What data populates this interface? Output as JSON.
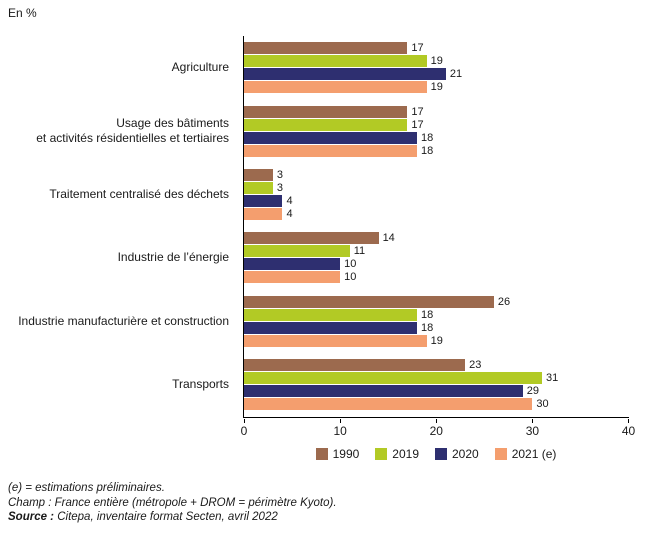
{
  "title": "En %",
  "chart_data": {
    "type": "bar",
    "orientation": "horizontal",
    "unit": "%",
    "categories": [
      "Agriculture",
      "Usage des bâtiments\net activités résidentielles et tertiaires",
      "Traitement centralisé des déchets",
      "Industrie de l’énergie",
      "Industrie manufacturière et construction",
      "Transports"
    ],
    "series": [
      {
        "name": "1990",
        "color": "#9c6a4e",
        "values": [
          17,
          17,
          3,
          14,
          26,
          23
        ]
      },
      {
        "name": "2019",
        "color": "#b2ca25",
        "values": [
          19,
          17,
          3,
          11,
          18,
          31
        ]
      },
      {
        "name": "2020",
        "color": "#2e2f70",
        "values": [
          21,
          18,
          4,
          10,
          18,
          29
        ]
      },
      {
        "name": "2021 (e)",
        "color": "#f49e6e",
        "values": [
          19,
          18,
          4,
          10,
          19,
          30
        ]
      }
    ],
    "xlim": [
      0,
      40
    ],
    "xticks": [
      0,
      10,
      20,
      30,
      40
    ],
    "legend_position": "bottom",
    "grid": false,
    "value_labels": true
  },
  "footer": {
    "line1": "(e) = estimations préliminaires.",
    "line2": "Champ : France entière (métropole + DROM = périmètre Kyoto).",
    "source_label": "Source :",
    "source_text": " Citepa, inventaire format Secten, avril 2022"
  }
}
